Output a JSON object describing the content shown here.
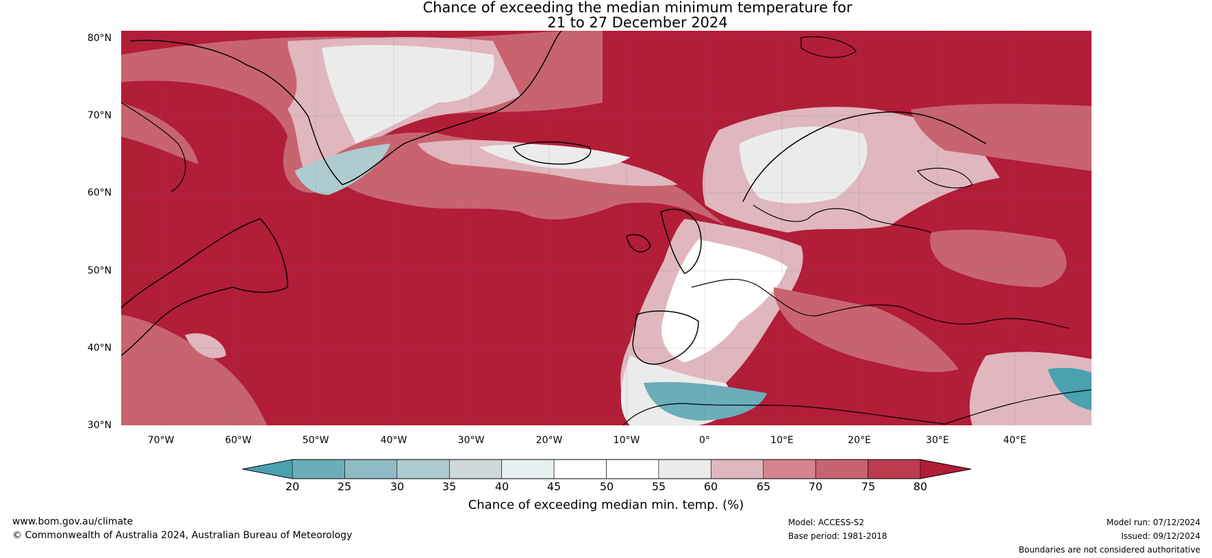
{
  "title_line1": "Chance of exceeding the median minimum temperature for",
  "title_line2": "21 to 27 December 2024",
  "lat_labels": [
    "80°N",
    "70°N",
    "60°N",
    "50°N",
    "40°N",
    "30°N"
  ],
  "lon_labels": [
    "70°W",
    "60°W",
    "50°W",
    "40°W",
    "30°W",
    "20°W",
    "10°W",
    "0°",
    "10°E",
    "20°E",
    "30°E",
    "40°E"
  ],
  "colorbar": {
    "ticks": [
      "20",
      "25",
      "30",
      "35",
      "40",
      "45",
      "50",
      "55",
      "60",
      "65",
      "70",
      "75",
      "80"
    ],
    "colors": [
      "#4aa1b0",
      "#6badb9",
      "#8ebbc5",
      "#aecbcf",
      "#cfd9da",
      "#e9f0f1",
      "#ffffff",
      "#ffffff",
      "#ecebec",
      "#e0b7be",
      "#d4848e",
      "#c86470",
      "#bd3b4f",
      "#b21d38"
    ],
    "label": "Chance of exceeding median min. temp. (%)"
  },
  "footer": {
    "url": "www.bom.gov.au/climate",
    "copyright": "© Commonwealth of Australia 2024, Australian Bureau of Meteorology",
    "model": "Model: ACCESS-S2",
    "base_period": "Base period: 1981-2018",
    "model_run": "Model run: 07/12/2024",
    "issued": "Issued: 09/12/2024",
    "disclaimer": "Boundaries are not considered authoritative"
  }
}
